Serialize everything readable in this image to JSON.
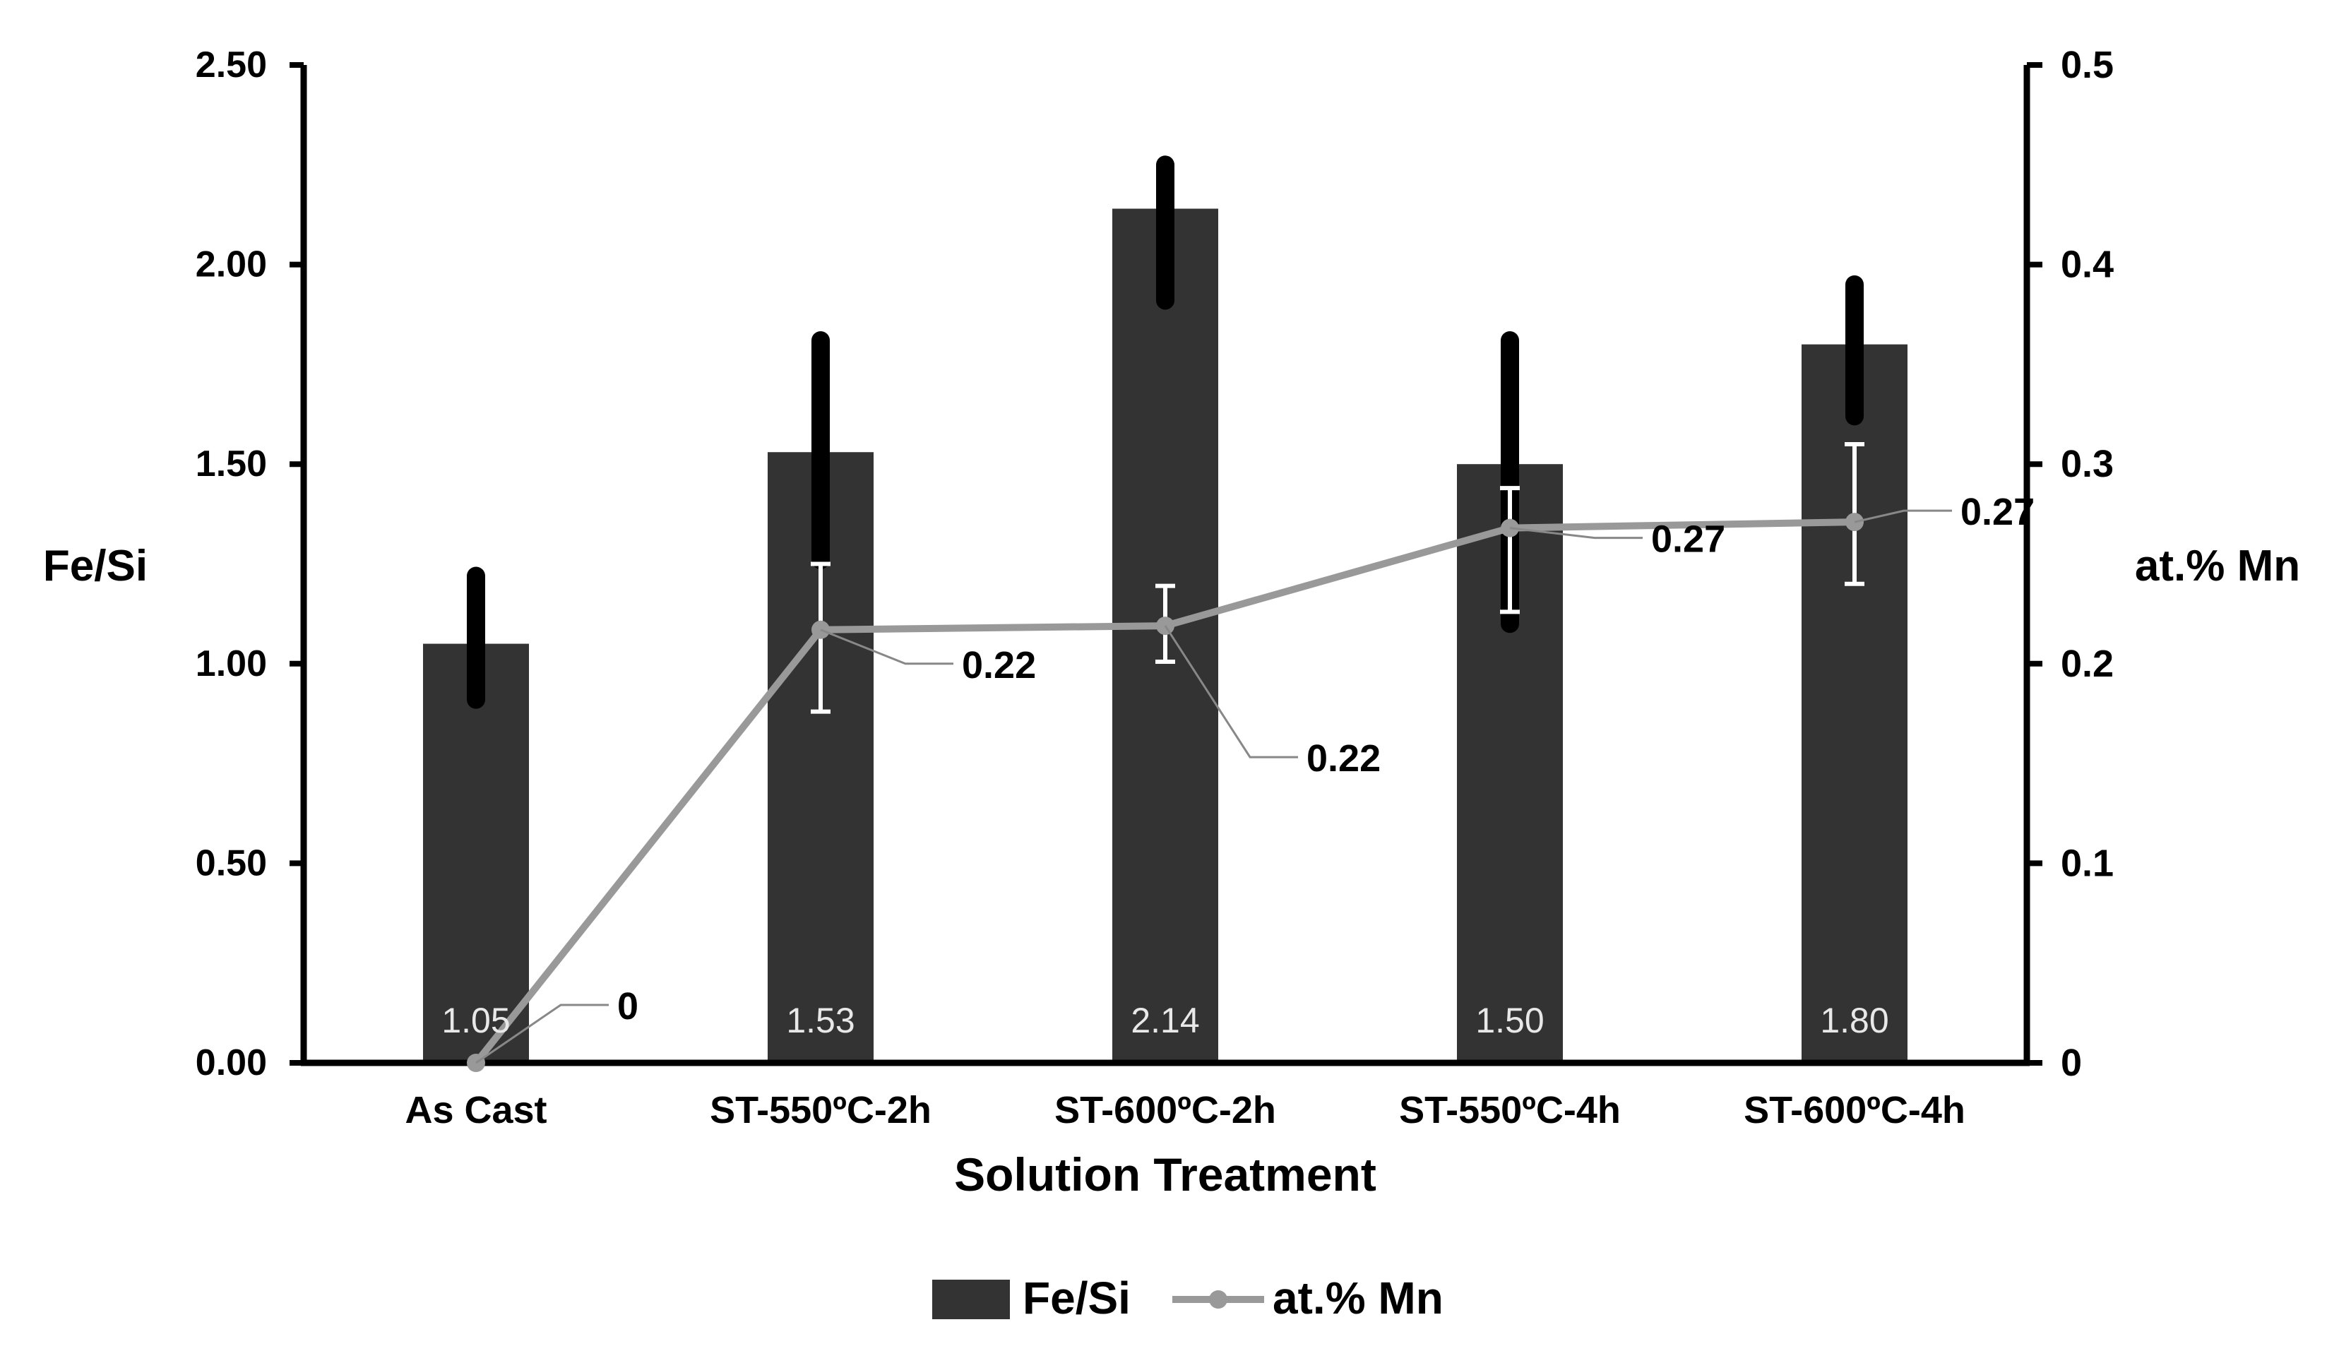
{
  "chart_data": {
    "type": "bar",
    "title": "",
    "xlabel": "Solution Treatment",
    "ylabel": "Fe/Si",
    "y2label": "at.% Mn",
    "ylim": [
      0,
      2.5
    ],
    "y2lim": [
      0,
      0.5
    ],
    "yticks": [
      "0.00",
      "0.50",
      "1.00",
      "1.50",
      "2.00",
      "2.50"
    ],
    "y2ticks": [
      "0",
      "0.1",
      "0.2",
      "0.3",
      "0.4",
      "0.5"
    ],
    "grid": false,
    "legend_position": "bottom-center",
    "categories": [
      "As Cast",
      "ST-550ºC-2h",
      "ST-600ºC-2h",
      "ST-550ºC-4h",
      "ST-600ºC-4h"
    ],
    "series": [
      {
        "name": "Fe/Si",
        "kind": "bar",
        "axis": "left",
        "color": "#333333",
        "values": [
          1.05,
          1.53,
          2.14,
          1.5,
          1.8
        ],
        "labels": [
          "1.05",
          "1.53",
          "2.14",
          "1.50",
          "1.80"
        ],
        "error_low": [
          0.91,
          1.26,
          1.91,
          1.1,
          1.62
        ],
        "error_high": [
          1.22,
          1.81,
          2.25,
          1.81,
          1.95
        ]
      },
      {
        "name": "at.% Mn",
        "kind": "line",
        "axis": "right",
        "color": "#999999",
        "values": [
          0,
          0.217,
          0.219,
          0.268,
          0.271
        ],
        "labels": [
          "0",
          "0.22",
          "0.22",
          "0.27",
          "0.27"
        ],
        "error_low": [
          null,
          0.176,
          0.201,
          0.226,
          0.24
        ],
        "error_high": [
          null,
          0.25,
          0.239,
          0.288,
          0.31
        ]
      }
    ]
  }
}
